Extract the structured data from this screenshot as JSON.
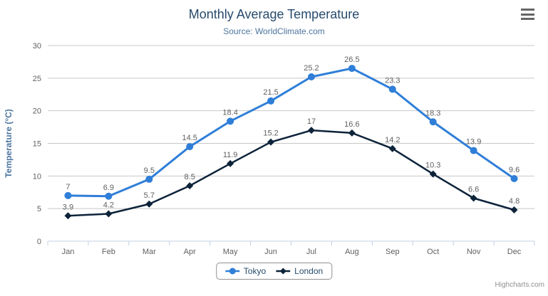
{
  "header": {
    "title": "Monthly Average Temperature",
    "subtitle": "Source: WorldClimate.com"
  },
  "chart_data": {
    "type": "line",
    "categories": [
      "Jan",
      "Feb",
      "Mar",
      "Apr",
      "May",
      "Jun",
      "Jul",
      "Aug",
      "Sep",
      "Oct",
      "Nov",
      "Dec"
    ],
    "series": [
      {
        "name": "Tokyo",
        "color": "#2f7ed8",
        "marker": "circle",
        "values": [
          7,
          6.9,
          9.5,
          14.5,
          18.4,
          21.5,
          25.2,
          26.5,
          23.3,
          18.3,
          13.9,
          9.6
        ]
      },
      {
        "name": "London",
        "color": "#0d233a",
        "marker": "diamond",
        "values": [
          3.9,
          4.2,
          5.7,
          8.5,
          11.9,
          15.2,
          17,
          16.6,
          14.2,
          10.3,
          6.6,
          4.8
        ]
      }
    ],
    "title": "Monthly Average Temperature",
    "subtitle": "Source: WorldClimate.com",
    "xlabel": "",
    "ylabel": "Temperature (°C)",
    "ylim": [
      0,
      30
    ],
    "ytick_step": 5,
    "grid": true,
    "legend_position": "bottom",
    "data_labels": true
  },
  "credits": {
    "text": "Highcharts.com"
  },
  "colors": {
    "title": "#274b6d",
    "subtitle": "#4d759e",
    "axis_title": "#4d759e",
    "axis_label": "#606060",
    "data_label": "#606060",
    "grid_line": "#c8c8c8",
    "axis_line": "#c0d0e0",
    "legend_border": "#909090",
    "legend_text": "#274b6d",
    "credit": "#909090",
    "menu_icon": "#666666"
  }
}
